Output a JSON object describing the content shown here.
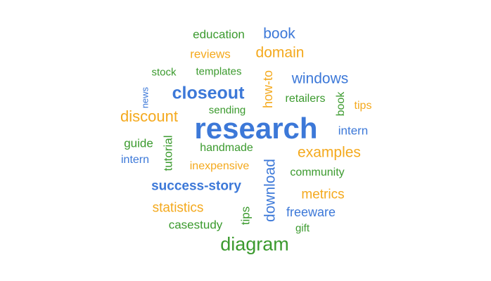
{
  "colors": {
    "blue": "#3c78d8",
    "orange": "#f4a91d",
    "green": "#3b9a2e"
  },
  "words": {
    "education": "education",
    "book": "book",
    "reviews": "reviews",
    "domain": "domain",
    "stock": "stock",
    "templates": "templates",
    "how_to": "how-to",
    "windows": "windows",
    "news": "news",
    "closeout": "closeout",
    "retailers": "retailers",
    "book_vertical": "book",
    "tips": "tips",
    "discount": "discount",
    "sending": "sending",
    "research": "research",
    "intern_right": "intern",
    "guide": "guide",
    "tutorial": "tutorial",
    "handmade": "handmade",
    "examples": "examples",
    "intern_left": "intern",
    "inexpensive": "inexpensive",
    "download": "download",
    "community": "community",
    "success_story": "success-story",
    "metrics": "metrics",
    "statistics": "statistics",
    "tips_vertical": "tips",
    "freeware": "freeware",
    "casestudy": "casestudy",
    "gift": "gift",
    "diagram": "diagram"
  }
}
